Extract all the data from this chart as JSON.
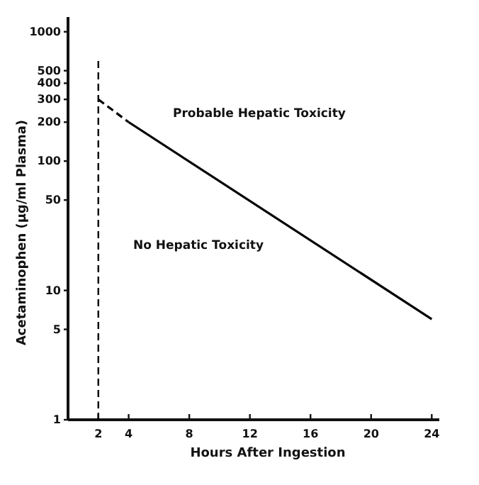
{
  "chart_data": {
    "type": "line",
    "xlabel": "Hours After Ingestion",
    "ylabel": "Acetaminophen (µg/ml Plasma)",
    "log": "y",
    "xlim": [
      0,
      24.5
    ],
    "ylim": [
      1,
      1300
    ],
    "xticks": [
      2,
      4,
      8,
      12,
      16,
      20,
      24
    ],
    "yticks": [
      1,
      5,
      10,
      50,
      100,
      200,
      300,
      400,
      500,
      1000
    ],
    "marker": "none",
    "ref_lines": [
      {
        "axis": "x",
        "value": 2,
        "line_style": "dashed",
        "color": "#000000"
      }
    ],
    "series": [
      {
        "x": [
          2,
          4
        ],
        "values": [
          300,
          200
        ],
        "color": "#000000",
        "line_style": "dashed"
      },
      {
        "x": [
          4,
          24
        ],
        "values": [
          200,
          6
        ],
        "color": "#000000",
        "line_style": "solid"
      }
    ],
    "annotations": [
      "Probable Hepatic Toxicity",
      "No Hepatic Toxicity"
    ]
  }
}
